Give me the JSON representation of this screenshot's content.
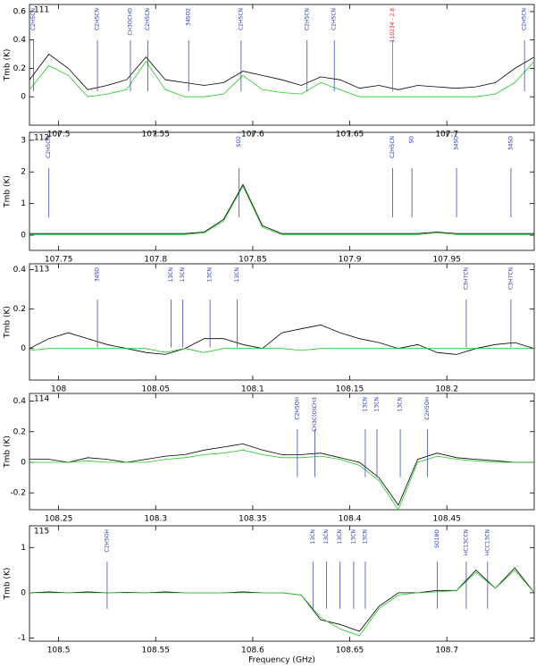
{
  "chart_data": [
    {
      "type": "line",
      "panel": "111",
      "y_label": "Tmb (K)",
      "xlim": [
        107.485,
        107.745
      ],
      "xticks": [
        107.5,
        107.55,
        107.6,
        107.65,
        107.7
      ],
      "ylim": [
        -0.2,
        0.65
      ],
      "yticks": [
        0,
        0.2,
        0.4,
        0.6
      ],
      "x": [
        107.485,
        107.495,
        107.505,
        107.515,
        107.525,
        107.535,
        107.545,
        107.555,
        107.565,
        107.575,
        107.585,
        107.595,
        107.605,
        107.615,
        107.625,
        107.635,
        107.645,
        107.655,
        107.665,
        107.675,
        107.685,
        107.695,
        107.705,
        107.715,
        107.725,
        107.735,
        107.745
      ],
      "series": [
        {
          "color": "#000000",
          "values": [
            0.12,
            0.3,
            0.2,
            0.05,
            0.08,
            0.12,
            0.28,
            0.12,
            0.1,
            0.08,
            0.1,
            0.18,
            0.15,
            0.12,
            0.08,
            0.14,
            0.12,
            0.06,
            0.08,
            0.05,
            0.08,
            0.07,
            0.06,
            0.07,
            0.1,
            0.2,
            0.28
          ]
        },
        {
          "color": "#22cc22",
          "values": [
            0.05,
            0.22,
            0.15,
            0.0,
            0.02,
            0.05,
            0.25,
            0.05,
            0.0,
            0.0,
            0.02,
            0.15,
            0.05,
            0.03,
            0.02,
            0.1,
            0.05,
            0.0,
            0.0,
            0.0,
            0.0,
            0.0,
            0.0,
            0.0,
            0.02,
            0.1,
            0.25
          ]
        }
      ],
      "lines": [
        {
          "x": 107.487,
          "label": "C2H5CN",
          "color": "#2233cc"
        },
        {
          "x": 107.52,
          "label": "C2H5CN",
          "color": "#2233cc"
        },
        {
          "x": 107.537,
          "label": "CH3OCHO",
          "color": "#2233cc"
        },
        {
          "x": 107.546,
          "label": "C2H5CN",
          "color": "#2233cc"
        },
        {
          "x": 107.567,
          "label": "34SO2",
          "color": "#2233cc"
        },
        {
          "x": 107.594,
          "label": "C2H5CN",
          "color": "#2233cc"
        },
        {
          "x": 107.628,
          "label": "C2H5CN",
          "color": "#2233cc"
        },
        {
          "x": 107.642,
          "label": "C2H5CN",
          "color": "#2233cc"
        },
        {
          "x": 107.672,
          "label": "110234 - 2.8",
          "color": "#ee2222"
        },
        {
          "x": 107.74,
          "label": "C2H5CN",
          "color": "#2233cc"
        }
      ]
    },
    {
      "type": "line",
      "panel": "112",
      "y_label": "Tmb (K)",
      "xlim": [
        107.735,
        107.995
      ],
      "xticks": [
        107.75,
        107.8,
        107.85,
        107.9,
        107.95
      ],
      "ylim": [
        -0.48,
        3.25
      ],
      "yticks": [
        0,
        1,
        2,
        3
      ],
      "x": [
        107.735,
        107.745,
        107.755,
        107.765,
        107.775,
        107.785,
        107.795,
        107.805,
        107.815,
        107.825,
        107.835,
        107.845,
        107.855,
        107.865,
        107.875,
        107.885,
        107.895,
        107.905,
        107.915,
        107.925,
        107.935,
        107.945,
        107.955,
        107.965,
        107.975,
        107.985,
        107.995
      ],
      "series": [
        {
          "color": "#000000",
          "values": [
            0.05,
            0.05,
            0.05,
            0.05,
            0.05,
            0.05,
            0.05,
            0.05,
            0.05,
            0.1,
            0.5,
            1.6,
            0.3,
            0.05,
            0.05,
            0.05,
            0.05,
            0.05,
            0.05,
            0.05,
            0.05,
            0.1,
            0.05,
            0.05,
            0.05,
            0.05,
            0.05
          ]
        },
        {
          "color": "#22cc22",
          "values": [
            0.02,
            0.02,
            0.02,
            0.02,
            0.02,
            0.02,
            0.02,
            0.02,
            0.02,
            0.08,
            0.45,
            1.55,
            0.25,
            0.02,
            0.02,
            0.02,
            0.02,
            0.02,
            0.02,
            0.02,
            0.02,
            0.08,
            0.02,
            0.02,
            0.02,
            0.02,
            0.02
          ]
        }
      ],
      "lines": [
        {
          "x": 107.745,
          "label": "C2H5CN",
          "color": "#2233cc"
        },
        {
          "x": 107.843,
          "label": "SO2",
          "color": "#2233cc"
        },
        {
          "x": 107.922,
          "label": "C2H5CN",
          "color": "#2233cc"
        },
        {
          "x": 107.932,
          "label": "SO",
          "color": "#2233cc"
        },
        {
          "x": 107.955,
          "label": "34SO",
          "color": "#2233cc"
        },
        {
          "x": 107.983,
          "label": "34SO",
          "color": "#2233cc"
        }
      ]
    },
    {
      "type": "line",
      "panel": "113",
      "y_label": "Tmb (K)",
      "xlim": [
        107.985,
        108.245
      ],
      "xticks": [
        108,
        108.05,
        108.1,
        108.15,
        108.2
      ],
      "ylim": [
        -0.16,
        0.43
      ],
      "yticks": [
        0,
        0.2,
        0.4
      ],
      "x": [
        107.985,
        107.995,
        108.005,
        108.015,
        108.025,
        108.035,
        108.045,
        108.055,
        108.065,
        108.075,
        108.085,
        108.095,
        108.105,
        108.115,
        108.125,
        108.135,
        108.145,
        108.155,
        108.165,
        108.175,
        108.185,
        108.195,
        108.205,
        108.215,
        108.225,
        108.235,
        108.245
      ],
      "series": [
        {
          "color": "#000000",
          "values": [
            0.0,
            0.05,
            0.08,
            0.05,
            0.02,
            0.0,
            -0.02,
            -0.03,
            0.0,
            0.05,
            0.05,
            0.02,
            0.0,
            0.08,
            0.1,
            0.12,
            0.08,
            0.05,
            0.03,
            0.0,
            0.02,
            -0.02,
            -0.03,
            0.0,
            0.02,
            0.03,
            0.0
          ]
        },
        {
          "color": "#22cc22",
          "values": [
            -0.01,
            0,
            0,
            0,
            0,
            0,
            0,
            -0.02,
            0,
            -0.02,
            0,
            0,
            0,
            0,
            -0.01,
            0,
            0,
            0,
            0,
            0,
            0,
            0,
            0,
            0,
            0,
            0,
            0
          ]
        }
      ],
      "lines": [
        {
          "x": 108.02,
          "label": "34SO",
          "color": "#2233cc"
        },
        {
          "x": 108.058,
          "label": "13CN",
          "color": "#2233cc"
        },
        {
          "x": 108.064,
          "label": "13CN",
          "color": "#2233cc"
        },
        {
          "x": 108.078,
          "label": "13CN",
          "color": "#2233cc"
        },
        {
          "x": 108.092,
          "label": "13CN",
          "color": "#2233cc"
        },
        {
          "x": 108.21,
          "label": "C3H7CN",
          "color": "#2233cc"
        },
        {
          "x": 108.233,
          "label": "C3H7CN",
          "color": "#2233cc"
        }
      ]
    },
    {
      "type": "line",
      "panel": "114",
      "y_label": "Tmb (K)",
      "xlim": [
        108.235,
        108.495
      ],
      "xticks": [
        108.25,
        108.3,
        108.35,
        108.4,
        108.45
      ],
      "ylim": [
        -0.31,
        0.45
      ],
      "yticks": [
        -0.2,
        0,
        0.2,
        0.4
      ],
      "x": [
        108.235,
        108.245,
        108.255,
        108.265,
        108.275,
        108.285,
        108.295,
        108.305,
        108.315,
        108.325,
        108.335,
        108.345,
        108.355,
        108.365,
        108.375,
        108.385,
        108.395,
        108.405,
        108.415,
        108.425,
        108.435,
        108.445,
        108.455,
        108.465,
        108.475,
        108.485,
        108.495
      ],
      "series": [
        {
          "color": "#000000",
          "values": [
            0.02,
            0.02,
            0.0,
            0.03,
            0.02,
            0.0,
            0.02,
            0.04,
            0.05,
            0.08,
            0.1,
            0.12,
            0.08,
            0.05,
            0.05,
            0.06,
            0.03,
            0.0,
            -0.1,
            -0.28,
            0.02,
            0.06,
            0.03,
            0.02,
            0.01,
            0.0,
            0.0
          ]
        },
        {
          "color": "#22cc22",
          "values": [
            0.0,
            0.0,
            0.0,
            0.01,
            0.0,
            0.0,
            0.0,
            0.02,
            0.03,
            0.05,
            0.06,
            0.08,
            0.05,
            0.03,
            0.03,
            0.04,
            0.02,
            -0.02,
            -0.12,
            -0.31,
            0.0,
            0.04,
            0.02,
            0.01,
            0.0,
            0.0,
            0.0
          ]
        }
      ],
      "lines": [
        {
          "x": 108.373,
          "label": "C2H5OH",
          "color": "#2233cc"
        },
        {
          "x": 108.382,
          "label": "CH3C(O)CH3",
          "color": "#2233cc"
        },
        {
          "x": 108.408,
          "label": "13CN",
          "color": "#2233cc"
        },
        {
          "x": 108.414,
          "label": "13CN",
          "color": "#2233cc"
        },
        {
          "x": 108.426,
          "label": "13CN",
          "color": "#2233cc"
        },
        {
          "x": 108.44,
          "label": "C2H5OH",
          "color": "#2233cc"
        }
      ]
    },
    {
      "type": "line",
      "panel": "115",
      "y_label": "Tmb (K)",
      "x_label": "Frequency (GHz)",
      "xlim": [
        108.485,
        108.745
      ],
      "xticks": [
        108.5,
        108.55,
        108.6,
        108.65,
        108.7
      ],
      "ylim": [
        -1.07,
        1.48
      ],
      "yticks": [
        -1,
        0,
        1
      ],
      "x": [
        108.485,
        108.495,
        108.505,
        108.515,
        108.525,
        108.535,
        108.545,
        108.555,
        108.565,
        108.575,
        108.585,
        108.595,
        108.605,
        108.615,
        108.625,
        108.635,
        108.645,
        108.655,
        108.665,
        108.675,
        108.685,
        108.695,
        108.705,
        108.715,
        108.725,
        108.735,
        108.745
      ],
      "series": [
        {
          "color": "#000000",
          "values": [
            0,
            0.02,
            0.0,
            0.02,
            0.0,
            0.01,
            0.0,
            0.02,
            0.0,
            0.0,
            0.0,
            0.02,
            0.0,
            0.0,
            -0.05,
            -0.6,
            -0.7,
            -0.85,
            -0.3,
            0.0,
            0.0,
            0.05,
            0.05,
            0.5,
            0.1,
            0.55,
            0.0
          ]
        },
        {
          "color": "#22cc22",
          "values": [
            0,
            0,
            0,
            0,
            0,
            0,
            0,
            0,
            0,
            0,
            0,
            0,
            0,
            0,
            -0.05,
            -0.55,
            -0.8,
            -0.95,
            -0.35,
            -0.05,
            0,
            0.02,
            0.05,
            0.45,
            0.1,
            0.5,
            0.0
          ]
        }
      ],
      "lines": [
        {
          "x": 108.525,
          "label": "C2H5OH",
          "color": "#2233cc"
        },
        {
          "x": 108.631,
          "label": "13CN",
          "color": "#2233cc"
        },
        {
          "x": 108.638,
          "label": "13CN",
          "color": "#2233cc"
        },
        {
          "x": 108.645,
          "label": "13CN",
          "color": "#2233cc"
        },
        {
          "x": 108.652,
          "label": "13CN",
          "color": "#2233cc"
        },
        {
          "x": 108.658,
          "label": "13CN",
          "color": "#2233cc"
        },
        {
          "x": 108.695,
          "label": "SO18O",
          "color": "#2233cc"
        },
        {
          "x": 108.71,
          "label": "HC13CCN",
          "color": "#2233cc"
        },
        {
          "x": 108.721,
          "label": "HCC13CN",
          "color": "#2233cc"
        }
      ]
    }
  ]
}
